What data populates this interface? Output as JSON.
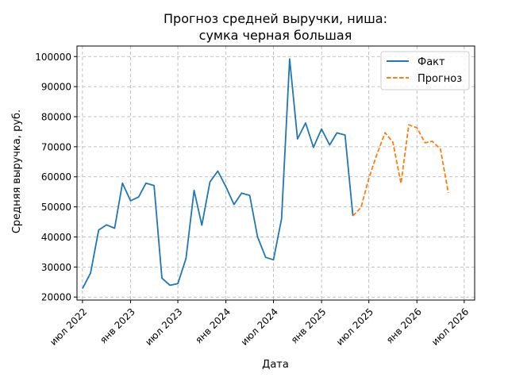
{
  "chart_data": {
    "type": "line",
    "title": [
      "Прогноз средней выручки, ниша:",
      "сумка черная большая"
    ],
    "xlabel": "Дата",
    "ylabel": "Средняя выручка, руб.",
    "ylim": [
      19000,
      103500
    ],
    "xlim": [
      "2022-06-10",
      "2026-08-10"
    ],
    "grid": true,
    "legend_position": "top-right",
    "y_ticks": [
      20000,
      30000,
      40000,
      50000,
      60000,
      70000,
      80000,
      90000,
      100000
    ],
    "y_tick_labels": [
      "20000",
      "30000",
      "40000",
      "50000",
      "60000",
      "70000",
      "80000",
      "90000",
      "100000"
    ],
    "x_ticks": [
      "2022-07-01",
      "2023-01-01",
      "2023-07-01",
      "2024-01-01",
      "2024-07-01",
      "2025-01-01",
      "2025-07-01",
      "2026-01-01",
      "2026-07-01"
    ],
    "x_tick_labels": [
      "июл 2022",
      "янв 2023",
      "июл 2023",
      "янв 2024",
      "июл 2024",
      "янв 2025",
      "июл 2025",
      "янв 2026",
      "июл 2026"
    ],
    "series": [
      {
        "name": "Факт",
        "color": "#1f77b4",
        "style": "solid",
        "x": [
          "2022-07-01",
          "2022-08-01",
          "2022-09-01",
          "2022-10-01",
          "2022-11-01",
          "2022-12-01",
          "2023-01-01",
          "2023-02-01",
          "2023-03-01",
          "2023-04-01",
          "2023-05-01",
          "2023-06-01",
          "2023-07-01",
          "2023-08-01",
          "2023-09-01",
          "2023-10-01",
          "2023-11-01",
          "2023-12-01",
          "2024-01-01",
          "2024-02-01",
          "2024-03-01",
          "2024-04-01",
          "2024-05-01",
          "2024-06-01",
          "2024-07-01",
          "2024-08-01",
          "2024-09-01",
          "2024-10-01",
          "2024-11-01",
          "2024-12-01",
          "2025-01-01",
          "2025-02-01",
          "2025-03-01",
          "2025-04-01",
          "2025-05-01"
        ],
        "values": [
          22800,
          28000,
          42300,
          44000,
          42900,
          57900,
          52000,
          53300,
          57900,
          57100,
          26300,
          23900,
          24500,
          32800,
          55500,
          43900,
          58300,
          61900,
          56700,
          50800,
          54600,
          53800,
          40000,
          33200,
          32400,
          46000,
          99200,
          72600,
          77900,
          69800,
          75900,
          70600,
          74600,
          73900,
          47000
        ]
      },
      {
        "name": "Прогноз",
        "color": "#ff7f0e",
        "style": "dashed",
        "x": [
          "2025-05-01",
          "2025-06-01",
          "2025-07-01",
          "2025-08-01",
          "2025-09-01",
          "2025-10-01",
          "2025-11-01",
          "2025-12-01",
          "2026-01-01",
          "2026-02-01",
          "2026-03-01",
          "2026-04-01",
          "2026-05-01"
        ],
        "values": [
          47000,
          49800,
          59500,
          67500,
          74700,
          71500,
          57800,
          77300,
          76300,
          71300,
          71800,
          69200,
          54700
        ]
      }
    ]
  }
}
